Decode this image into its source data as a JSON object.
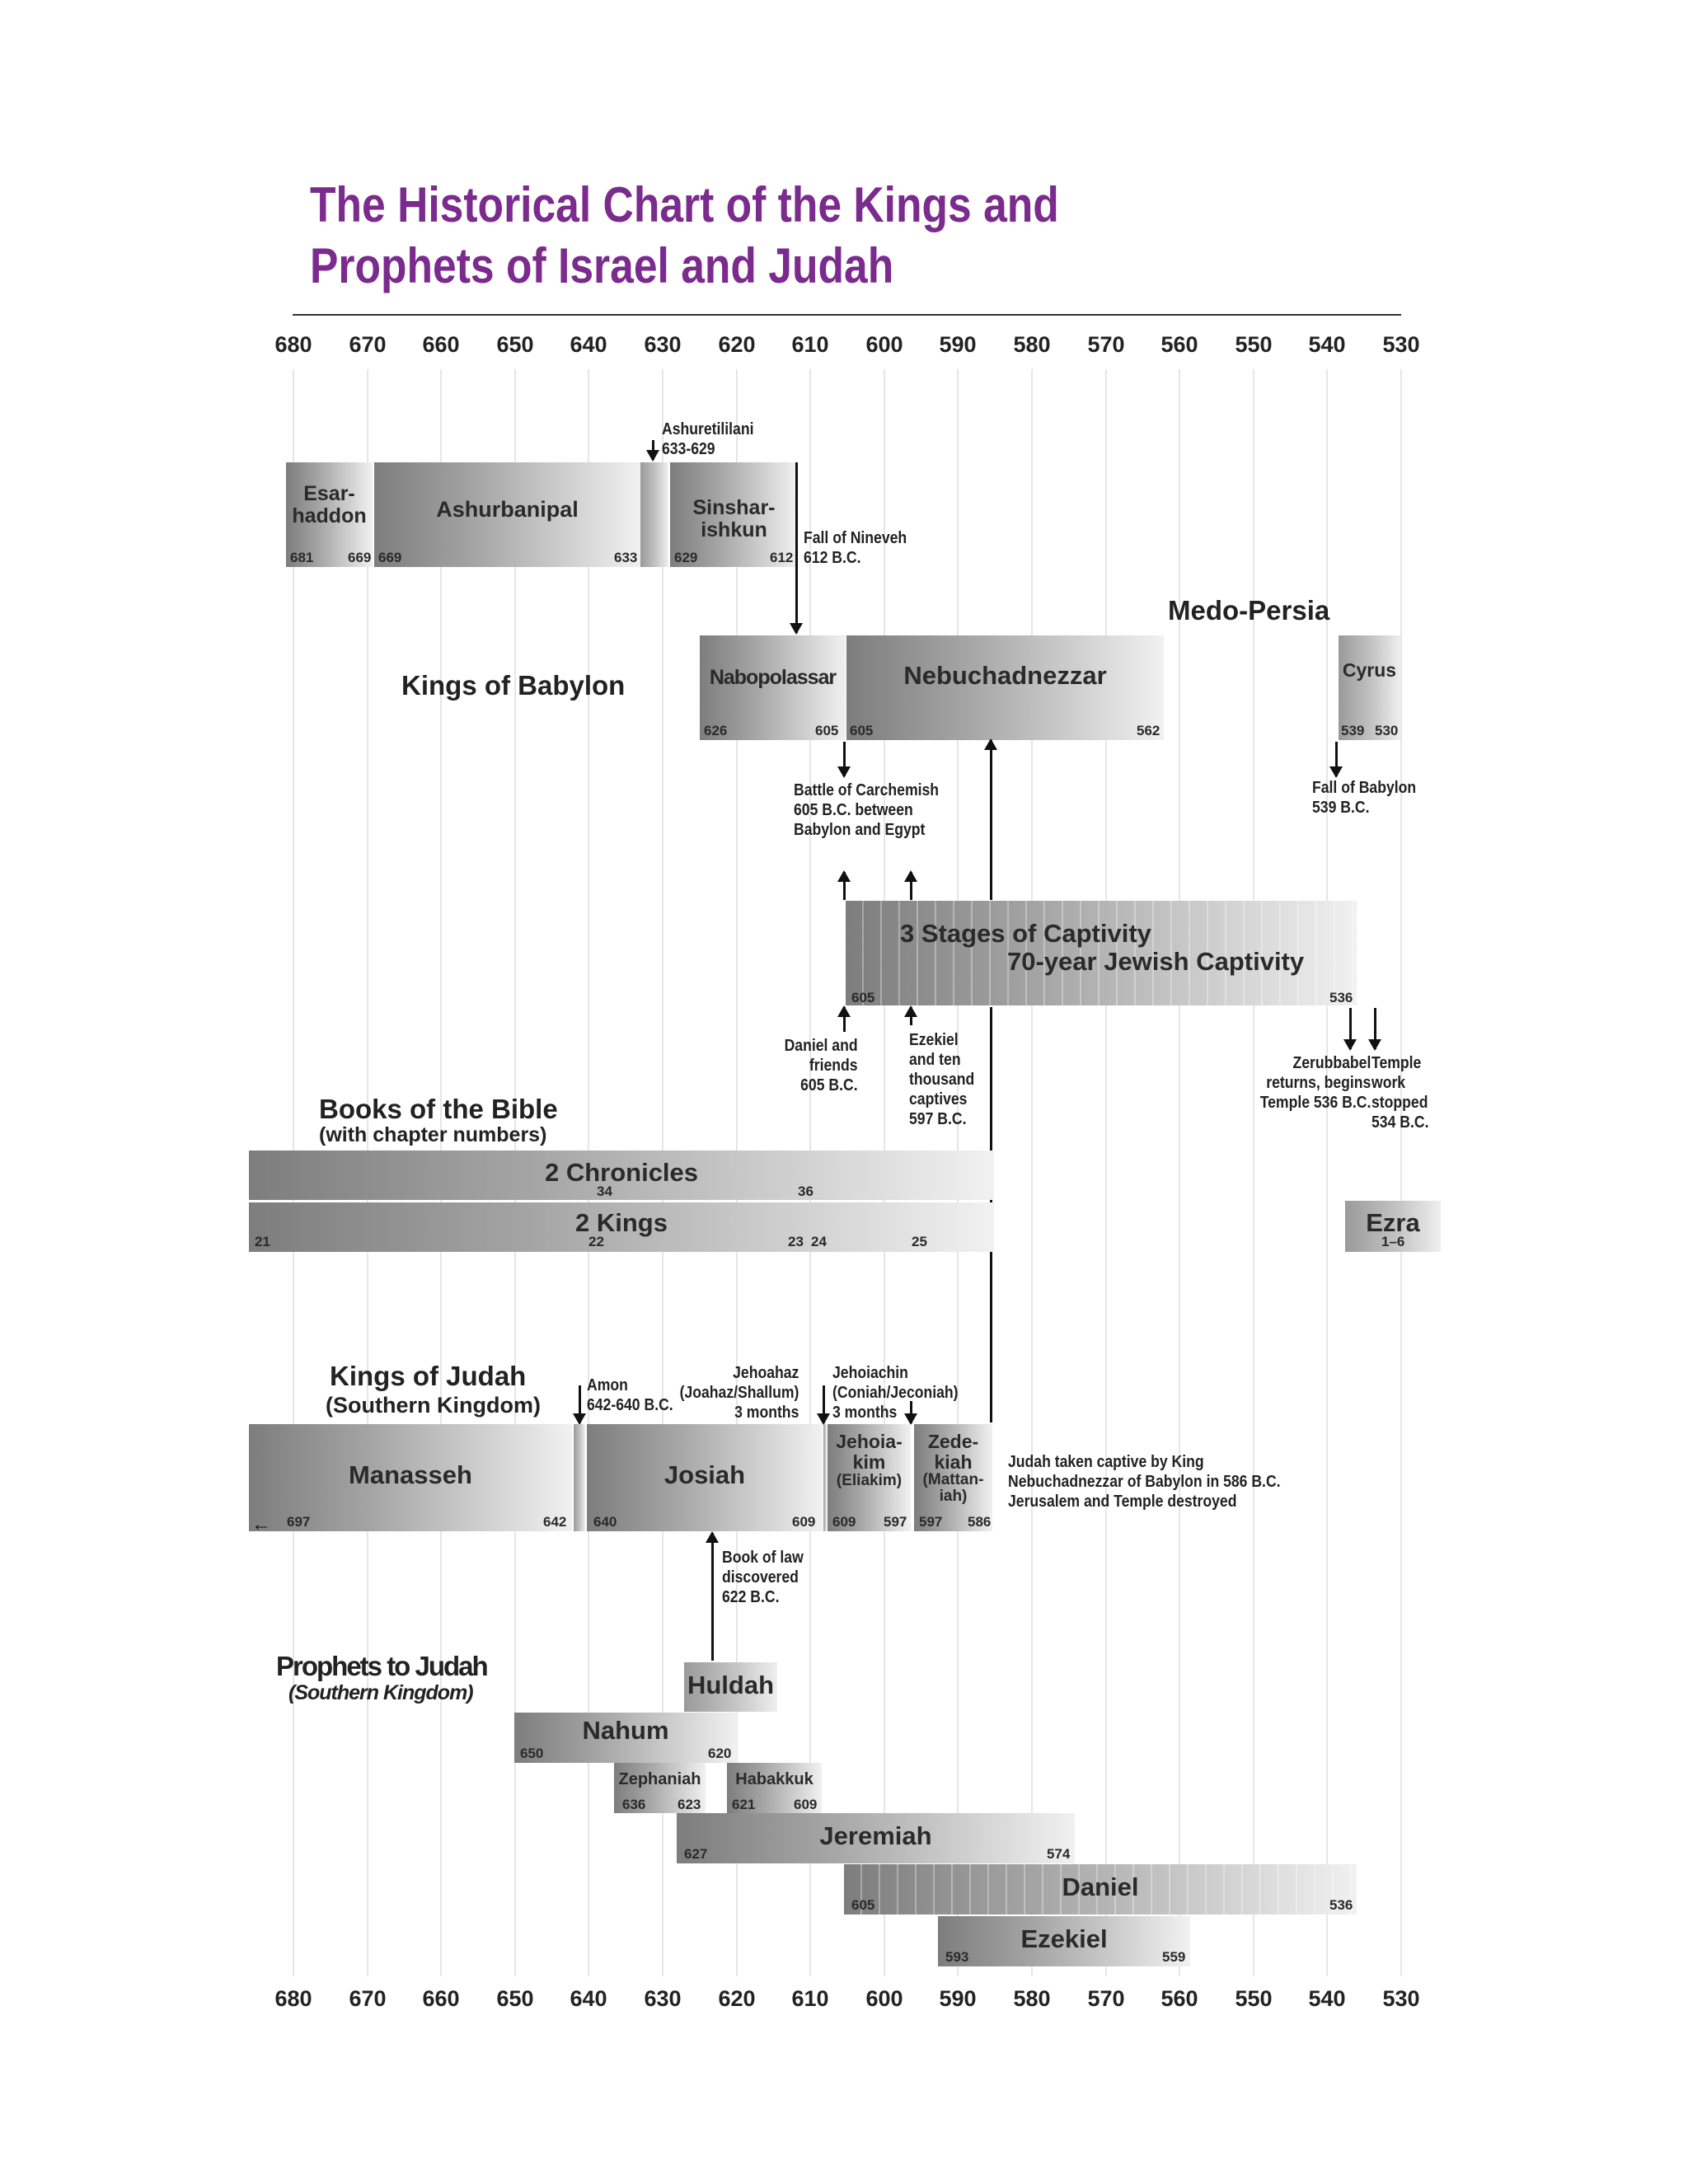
{
  "title": "The Historical Chart of the Kings and Prophets of Israel and Judah",
  "axis_ticks": [
    "680",
    "670",
    "660",
    "650",
    "640",
    "630",
    "620",
    "610",
    "600",
    "590",
    "580",
    "570",
    "560",
    "550",
    "540",
    "530"
  ],
  "assyria": {
    "esarhaddon": {
      "label": "Esar-\nhaddon",
      "start": "681",
      "end": "669"
    },
    "ashurbanipal": {
      "label": "Ashurbanipal",
      "start": "669",
      "end": "633"
    },
    "ashuretililani": {
      "label": "Ashuretililani\n633-629"
    },
    "sinsharishkun": {
      "label": "Sinshar-\nishkun",
      "start": "629",
      "end": "612"
    },
    "fall_of_nineveh": "Fall of Nineveh\n612 B.C."
  },
  "babylon": {
    "heading": "Kings of Babylon",
    "nabopolassar": {
      "label": "Nabopolassar",
      "start": "626",
      "end": "605"
    },
    "nebuchadnezzar": {
      "label": "Nebuchadnezzar",
      "start": "605",
      "end": "562"
    },
    "carchemish": "Battle of Carchemish\n605 B.C. between\nBabylon and Egypt"
  },
  "persia": {
    "heading": "Medo-Persia",
    "cyrus": {
      "label": "Cyrus",
      "start": "539",
      "end": "530"
    },
    "fall_of_babylon": "Fall of Babylon\n539 B.C."
  },
  "captivity": {
    "line1": "3 Stages of Captivity",
    "line2": "70-year Jewish Captivity",
    "start": "605",
    "end": "536",
    "daniel_note": "Daniel and\nfriends\n605 B.C.",
    "ezekiel_note": "Ezekiel\nand ten\nthousand\ncaptives\n597 B.C.",
    "zerubbabel_note": "Zerubbabel\nreturns, begins\nTemple 536 B.C.",
    "temple_note": "Temple\nwork\nstopped\n534 B.C."
  },
  "books": {
    "heading": "Books of the Bible",
    "subheading": "(with chapter numbers)",
    "chronicles": {
      "label": "2 Chronicles",
      "ch_a": "34",
      "ch_b": "36"
    },
    "kings": {
      "label": "2 Kings",
      "ch_a": "21",
      "ch_b": "22",
      "ch_c": "23",
      "ch_d": "24",
      "ch_e": "25"
    },
    "ezra": {
      "label": "Ezra",
      "chapters": "1–6"
    }
  },
  "judah": {
    "heading": "Kings of Judah",
    "subheading": "(Southern Kingdom)",
    "amon": "Amon\n642-640 B.C.",
    "jehoahaz": "Jehoahaz\n(Joahaz/Shallum)\n3 months",
    "jehoiachin": "Jehoiachin\n(Coniah/Jeconiah)\n3 months",
    "manasseh": {
      "label": "Manasseh",
      "start": "697",
      "end": "642"
    },
    "josiah": {
      "label": "Josiah",
      "start": "640",
      "end": "609"
    },
    "jehoiakim": {
      "label": "Jehoia-\nkim",
      "sub": "(Eliakim)",
      "start": "609",
      "end": "597"
    },
    "zedekiah": {
      "label": "Zede-\nkiah",
      "sub": "(Mattan-\niah)",
      "start": "597",
      "end": "586"
    },
    "captive_note": "Judah taken captive by King\nNebuchadnezzar of Babylon in 586 B.C.\nJerusalem and Temple destroyed",
    "book_of_law": "Book of law\ndiscovered\n622 B.C."
  },
  "prophets": {
    "heading": "Prophets to Judah",
    "subheading": "(Southern Kingdom)",
    "huldah": {
      "label": "Huldah"
    },
    "nahum": {
      "label": "Nahum",
      "start": "650",
      "end": "620"
    },
    "zephaniah": {
      "label": "Zephaniah",
      "start": "636",
      "end": "623"
    },
    "habakkuk": {
      "label": "Habakkuk",
      "start": "621",
      "end": "609"
    },
    "jeremiah": {
      "label": "Jeremiah",
      "start": "627",
      "end": "574"
    },
    "daniel": {
      "label": "Daniel",
      "start": "605",
      "end": "536"
    },
    "ezekiel": {
      "label": "Ezekiel",
      "start": "593",
      "end": "559"
    }
  }
}
